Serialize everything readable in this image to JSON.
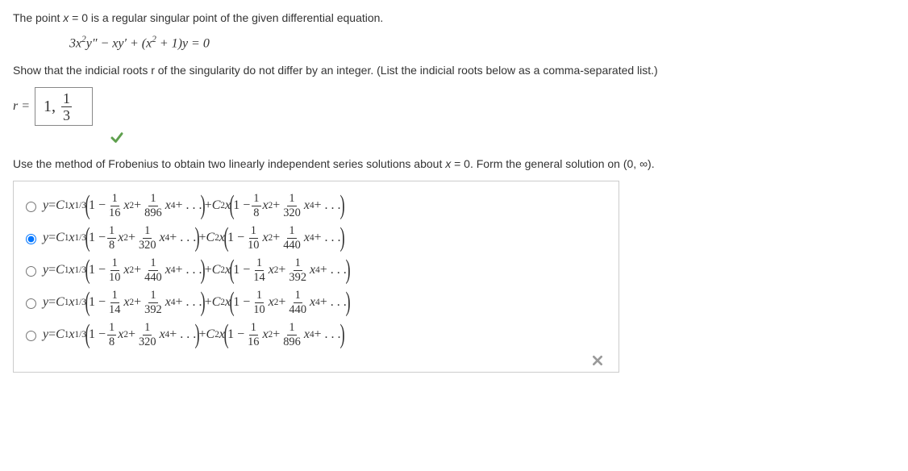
{
  "intro_text": "The point x = 0 is a regular singular point of the given differential equation.",
  "equation": "3x²y″ − xy′ + (x² + 1)y = 0",
  "show_text": "Show that the indicial roots r of the singularity do not differ by an integer. (List the indicial roots below as a comma-separated list.)",
  "r_label": "r =",
  "r_answer_main": "1,",
  "r_frac_num": "1",
  "r_frac_den": "3",
  "frobenius_text": "Use the method of Frobenius to obtain two linearly independent series solutions about x = 0. Form the general solution on (0, ∞).",
  "options": [
    {
      "selected": false,
      "a_den1": "16",
      "a_den2": "896",
      "b_den1": "8",
      "b_den2": "320"
    },
    {
      "selected": true,
      "a_den1": "8",
      "a_den2": "320",
      "b_den1": "10",
      "b_den2": "440"
    },
    {
      "selected": false,
      "a_den1": "10",
      "a_den2": "440",
      "b_den1": "14",
      "b_den2": "392"
    },
    {
      "selected": false,
      "a_den1": "14",
      "a_den2": "392",
      "b_den1": "10",
      "b_den2": "440"
    },
    {
      "selected": false,
      "a_den1": "8",
      "a_den2": "320",
      "b_den1": "16",
      "b_den2": "896"
    }
  ],
  "colors": {
    "check": "#5fa04e",
    "wrong": "#999999",
    "border": "#cccccc"
  }
}
